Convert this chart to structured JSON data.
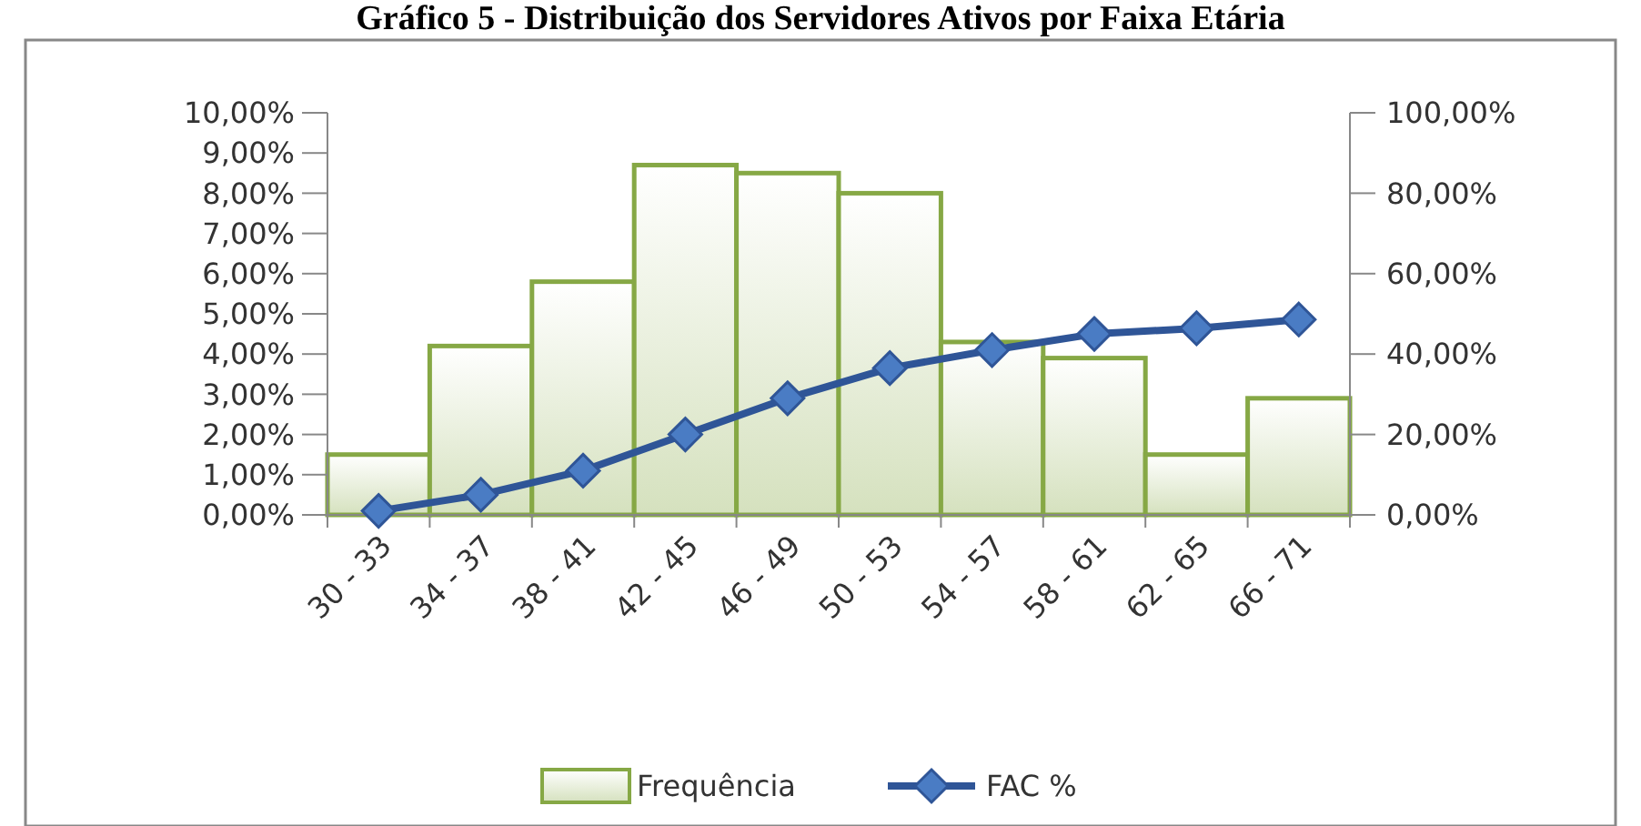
{
  "chart_data": {
    "type": "bar",
    "title": "Gráfico 5 - Distribuição dos Servidores Ativos por Faixa Etária",
    "categories": [
      "30 - 33",
      "34 - 37",
      "38 - 41",
      "42 - 45",
      "46 - 49",
      "50 - 53",
      "54 - 57",
      "58 - 61",
      "62 - 65",
      "66 - 71"
    ],
    "series": [
      {
        "name": "Frequência",
        "color": "#86a845",
        "values": [
          1.5,
          4.2,
          5.8,
          8.7,
          8.5,
          8.0,
          4.3,
          3.9,
          1.5,
          2.9
        ]
      },
      {
        "name": "FAC %",
        "type": "line",
        "axis": "y2",
        "color": "#2f5597",
        "marker": "diamond",
        "values": [
          1,
          5,
          11,
          20,
          29,
          36.5,
          41,
          45,
          46.4,
          48.6
        ]
      }
    ],
    "ylim": [
      0,
      10
    ],
    "yticks": [
      {
        "value": 0,
        "label": "0,00%"
      },
      {
        "value": 1,
        "label": "1,00%"
      },
      {
        "value": 2,
        "label": "2,00%"
      },
      {
        "value": 3,
        "label": "3,00%"
      },
      {
        "value": 4,
        "label": "4,00%"
      },
      {
        "value": 5,
        "label": "5,00%"
      },
      {
        "value": 6,
        "label": "6,00%"
      },
      {
        "value": 7,
        "label": "7,00%"
      },
      {
        "value": 8,
        "label": "8,00%"
      },
      {
        "value": 9,
        "label": "9,00%"
      },
      {
        "value": 10,
        "label": "10,00%"
      }
    ],
    "y2lim": [
      0,
      100
    ],
    "y2ticks": [
      {
        "value": 0,
        "label": "0,00%"
      },
      {
        "value": 20,
        "label": "20,00%"
      },
      {
        "value": 40,
        "label": "40,00%"
      },
      {
        "value": 60,
        "label": "60,00%"
      },
      {
        "value": 80,
        "label": "80,00%"
      },
      {
        "value": 100,
        "label": "100,00%"
      }
    ],
    "legend": "bottom",
    "grid": false
  }
}
